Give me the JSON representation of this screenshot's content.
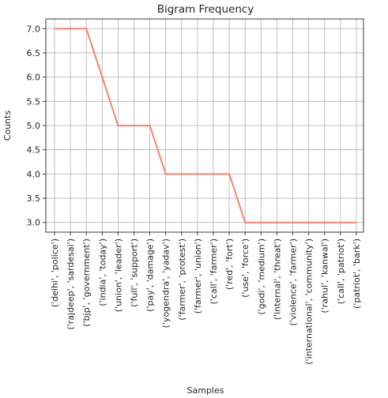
{
  "chart_data": {
    "type": "line",
    "title": "Bigram Frequency",
    "xlabel": "Samples",
    "ylabel": "Counts",
    "categories": [
      "('delhi', 'police')",
      "('rajdeep', 'sardesai')",
      "('bjp', 'government')",
      "('india', 'today')",
      "('union', 'leader')",
      "('full', 'support')",
      "('pay', 'damage')",
      "('yogendra', 'yadav')",
      "('farmer', 'protest')",
      "('farmer', 'union')",
      "('call', 'farmer')",
      "('red', 'fort')",
      "('use', 'force')",
      "('godi', 'medium')",
      "('internal', 'threat')",
      "('violence', 'farmer')",
      "('international', 'community')",
      "('rahul', 'kanwal')",
      "('call', 'patriot')",
      "('patriot', 'bark')"
    ],
    "values": [
      7,
      7,
      7,
      6,
      5,
      5,
      5,
      4,
      4,
      4,
      4,
      4,
      3,
      3,
      3,
      3,
      3,
      3,
      3,
      3
    ],
    "ylim": [
      2.8,
      7.2
    ],
    "yticks": [
      "3.0",
      "3.5",
      "4.0",
      "4.5",
      "5.0",
      "5.5",
      "6.0",
      "6.5",
      "7.0"
    ],
    "grid": true,
    "line_color": "#fa8072"
  }
}
